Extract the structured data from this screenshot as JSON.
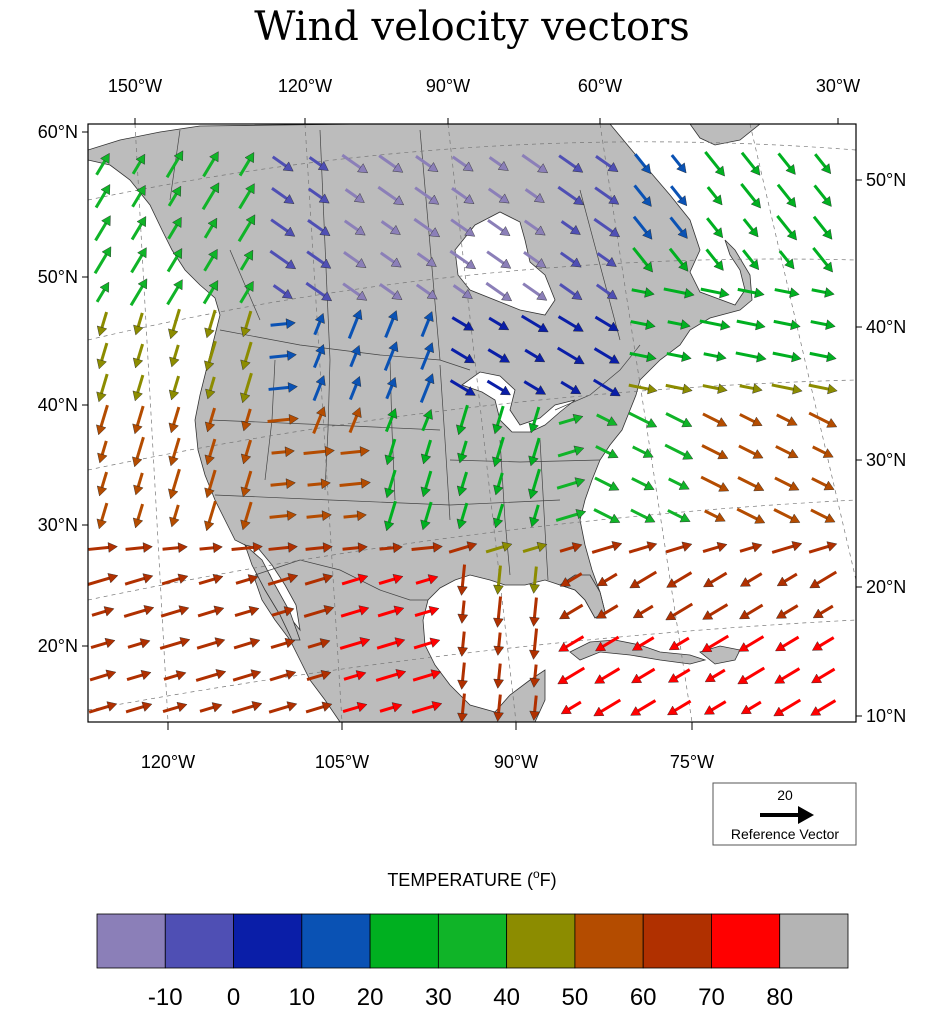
{
  "title": "Wind velocity vectors",
  "top_lon_labels": [
    "150°W",
    "120°W",
    "90°W",
    "60°W",
    "30°W"
  ],
  "bottom_lon_labels": [
    "120°W",
    "105°W",
    "90°W",
    "75°W"
  ],
  "left_lat_labels": [
    "60°N",
    "50°N",
    "40°N",
    "30°N",
    "20°N"
  ],
  "right_lat_labels": [
    "50°N",
    "40°N",
    "30°N",
    "20°N",
    "10°N"
  ],
  "reference": {
    "magnitude": "20",
    "label": "Reference Vector"
  },
  "colorbar": {
    "title_text": "TEMPERATURE (",
    "title_super": "o",
    "title_unit": "F)",
    "tick_labels": [
      "-10",
      "0",
      "10",
      "20",
      "30",
      "40",
      "50",
      "60",
      "70",
      "80"
    ],
    "colors": [
      "#8b7fb8",
      "#4f4fb4",
      "#0a1ea8",
      "#0a52b4",
      "#00b020",
      "#10b428",
      "#8c8c00",
      "#b44c00",
      "#b03000",
      "#ff0000",
      "#b4b4b4"
    ]
  },
  "colors": {
    "land": "#bcbcbc",
    "water": "#ffffff",
    "border": "#333333"
  },
  "chart_data": {
    "type": "vector-field",
    "title": "Wind velocity vectors",
    "color_variable": "TEMPERATURE (°F)",
    "color_levels": [
      -10,
      0,
      10,
      20,
      30,
      40,
      50,
      60,
      70,
      80
    ],
    "reference_vector": 20,
    "grid": true,
    "vectors_by_region": [
      {
        "region": "northern Canada / Hudson Bay",
        "temperature_band": "<-10 to 0",
        "flow": "southeast"
      },
      {
        "region": "Labrador / Quebec",
        "temperature_band": "0 to 20",
        "flow": "southeast"
      },
      {
        "region": "northwest Canada / Alaska coast",
        "temperature_band": "20 to 40",
        "flow": "northeast"
      },
      {
        "region": "Great Lakes / Upper Midwest",
        "temperature_band": "10 to 20",
        "flow": "south"
      },
      {
        "region": "central Plains / Mississippi valley",
        "temperature_band": "30 to 50",
        "flow": "south"
      },
      {
        "region": "western Atlantic off Newfoundland",
        "temperature_band": "20 to 40",
        "flow": "east"
      },
      {
        "region": "southwest US / northern Mexico",
        "temperature_band": "50 to 70",
        "flow": "east-northeast"
      },
      {
        "region": "Gulf of Mexico / Caribbean",
        "temperature_band": "60 to 80",
        "flow": "southwest"
      },
      {
        "region": "eastern Pacific off California",
        "temperature_band": "50 to 70",
        "flow": "south"
      }
    ]
  }
}
